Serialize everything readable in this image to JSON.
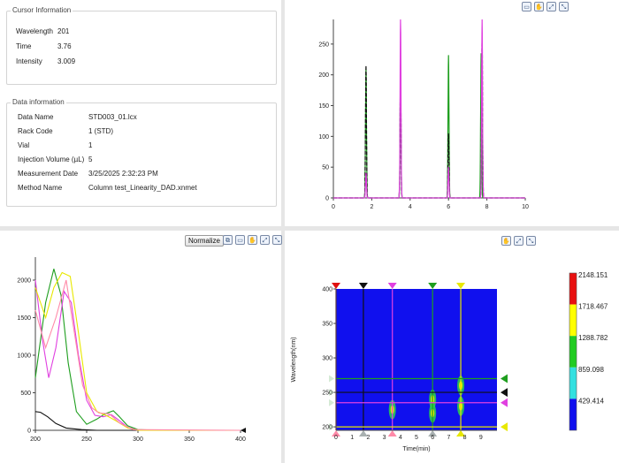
{
  "cursor_info": {
    "title": "Cursor Information",
    "rows": [
      {
        "label": "Wavelength",
        "value": "201"
      },
      {
        "label": "Time",
        "value": "3.76"
      },
      {
        "label": "Intensity",
        "value": "3.009"
      }
    ]
  },
  "data_info": {
    "title": "Data information",
    "rows": [
      {
        "label": "Data Name",
        "value": "STD003_01.lcx"
      },
      {
        "label": "Rack Code",
        "value": "1 (STD)"
      },
      {
        "label": "Vial",
        "value": "1"
      },
      {
        "label": "Injection Volume (µL)",
        "value": "5"
      },
      {
        "label": "Measurement Date",
        "value": "3/25/2025 2:32:23 PM"
      },
      {
        "label": "Method Name",
        "value": "Column test_Linearity_DAD.xnmet"
      }
    ]
  },
  "spectrum_toolbar": {
    "normalize_label": "Normalize"
  },
  "colors": {
    "green": "#1e9e1e",
    "black": "#111111",
    "magenta": "#e040e0",
    "yellow": "#e8e800",
    "pink": "#ff8aa8"
  },
  "chart_data": [
    {
      "type": "line",
      "name": "chromatogram",
      "xlim": [
        0,
        10
      ],
      "ylim": [
        0,
        290
      ],
      "xticks": [
        "0",
        "2",
        "4",
        "6",
        "8",
        "10"
      ],
      "yticks": [
        "0",
        "50",
        "100",
        "150",
        "200",
        "250"
      ],
      "series": [
        {
          "color": "green",
          "peaks": [
            [
              1.7,
              210
            ],
            [
              3.5,
              195
            ],
            [
              6.0,
              232
            ],
            [
              7.7,
              235
            ]
          ]
        },
        {
          "color": "black",
          "peaks": [
            [
              1.7,
              215
            ],
            [
              3.5,
              200
            ],
            [
              6.0,
              105
            ],
            [
              7.75,
              265
            ]
          ]
        },
        {
          "color": "magenta",
          "peaks": [
            [
              1.7,
              40
            ],
            [
              3.5,
              290
            ],
            [
              6.0,
              50
            ],
            [
              7.75,
              290
            ]
          ]
        }
      ]
    },
    {
      "type": "line",
      "name": "spectrum",
      "xlim": [
        200,
        400
      ],
      "ylim": [
        0,
        2400
      ],
      "xticks": [
        "200",
        "250",
        "300",
        "350",
        "400"
      ],
      "yticks": [
        "0",
        "500",
        "1000",
        "1500",
        "2000"
      ],
      "series": [
        {
          "color": "green",
          "points": [
            [
              200,
              700
            ],
            [
              210,
              1700
            ],
            [
              218,
              2150
            ],
            [
              225,
              1800
            ],
            [
              232,
              900
            ],
            [
              240,
              250
            ],
            [
              250,
              80
            ],
            [
              260,
              150
            ],
            [
              268,
              220
            ],
            [
              276,
              260
            ],
            [
              282,
              180
            ],
            [
              290,
              60
            ],
            [
              300,
              10
            ],
            [
              320,
              0
            ],
            [
              400,
              0
            ]
          ]
        },
        {
          "color": "black",
          "points": [
            [
              200,
              250
            ],
            [
              205,
              240
            ],
            [
              212,
              180
            ],
            [
              220,
              90
            ],
            [
              230,
              30
            ],
            [
              245,
              10
            ],
            [
              260,
              0
            ],
            [
              400,
              0
            ]
          ]
        },
        {
          "color": "magenta",
          "points": [
            [
              200,
              2000
            ],
            [
              207,
              1200
            ],
            [
              213,
              700
            ],
            [
              220,
              1100
            ],
            [
              228,
              1850
            ],
            [
              235,
              1700
            ],
            [
              242,
              1000
            ],
            [
              250,
              400
            ],
            [
              258,
              200
            ],
            [
              266,
              180
            ],
            [
              274,
              210
            ],
            [
              280,
              150
            ],
            [
              290,
              40
            ],
            [
              300,
              0
            ],
            [
              400,
              0
            ]
          ]
        },
        {
          "color": "yellow",
          "points": [
            [
              200,
              1900
            ],
            [
              210,
              1500
            ],
            [
              218,
              1900
            ],
            [
              226,
              2100
            ],
            [
              234,
              2050
            ],
            [
              242,
              1300
            ],
            [
              250,
              500
            ],
            [
              260,
              250
            ],
            [
              270,
              190
            ],
            [
              278,
              130
            ],
            [
              290,
              30
            ],
            [
              300,
              0
            ],
            [
              400,
              0
            ]
          ]
        },
        {
          "color": "pink",
          "points": [
            [
              200,
              1600
            ],
            [
              210,
              1100
            ],
            [
              220,
              1500
            ],
            [
              230,
              2000
            ],
            [
              238,
              1300
            ],
            [
              246,
              600
            ],
            [
              255,
              300
            ],
            [
              262,
              230
            ],
            [
              272,
              220
            ],
            [
              282,
              100
            ],
            [
              295,
              10
            ],
            [
              400,
              0
            ]
          ]
        }
      ]
    },
    {
      "type": "heatmap",
      "name": "contour",
      "xlabel": "Time(min)",
      "ylabel": "Wavelength(nm)",
      "xlim": [
        0,
        10
      ],
      "ylim": [
        195,
        400
      ],
      "xticks": [
        "0",
        "1",
        "2",
        "3",
        "4",
        "5",
        "6",
        "7",
        "8",
        "9"
      ],
      "yticks": [
        "200",
        "250",
        "300",
        "350",
        "400"
      ],
      "legend": [
        "2148.151",
        "1718.467",
        "1288.782",
        "859.098",
        "429.414"
      ],
      "spots": [
        [
          3.5,
          225
        ],
        [
          6.0,
          220
        ],
        [
          6.0,
          240
        ],
        [
          7.75,
          230
        ],
        [
          7.75,
          260
        ]
      ],
      "markers": {
        "top": [
          [
            0,
            "red"
          ],
          [
            1.7,
            "black"
          ],
          [
            3.5,
            "magenta"
          ],
          [
            6.0,
            "green"
          ],
          [
            7.75,
            "yellow"
          ]
        ],
        "right": [
          [
            270,
            "green"
          ],
          [
            250,
            "black"
          ],
          [
            235,
            "magenta"
          ],
          [
            200,
            "yellow"
          ]
        ],
        "bottom": [
          [
            0,
            "pink"
          ],
          [
            1.7,
            "gray"
          ],
          [
            3.5,
            "pink"
          ],
          [
            6.0,
            "gray"
          ],
          [
            7.75,
            "yellow"
          ]
        ]
      }
    }
  ]
}
